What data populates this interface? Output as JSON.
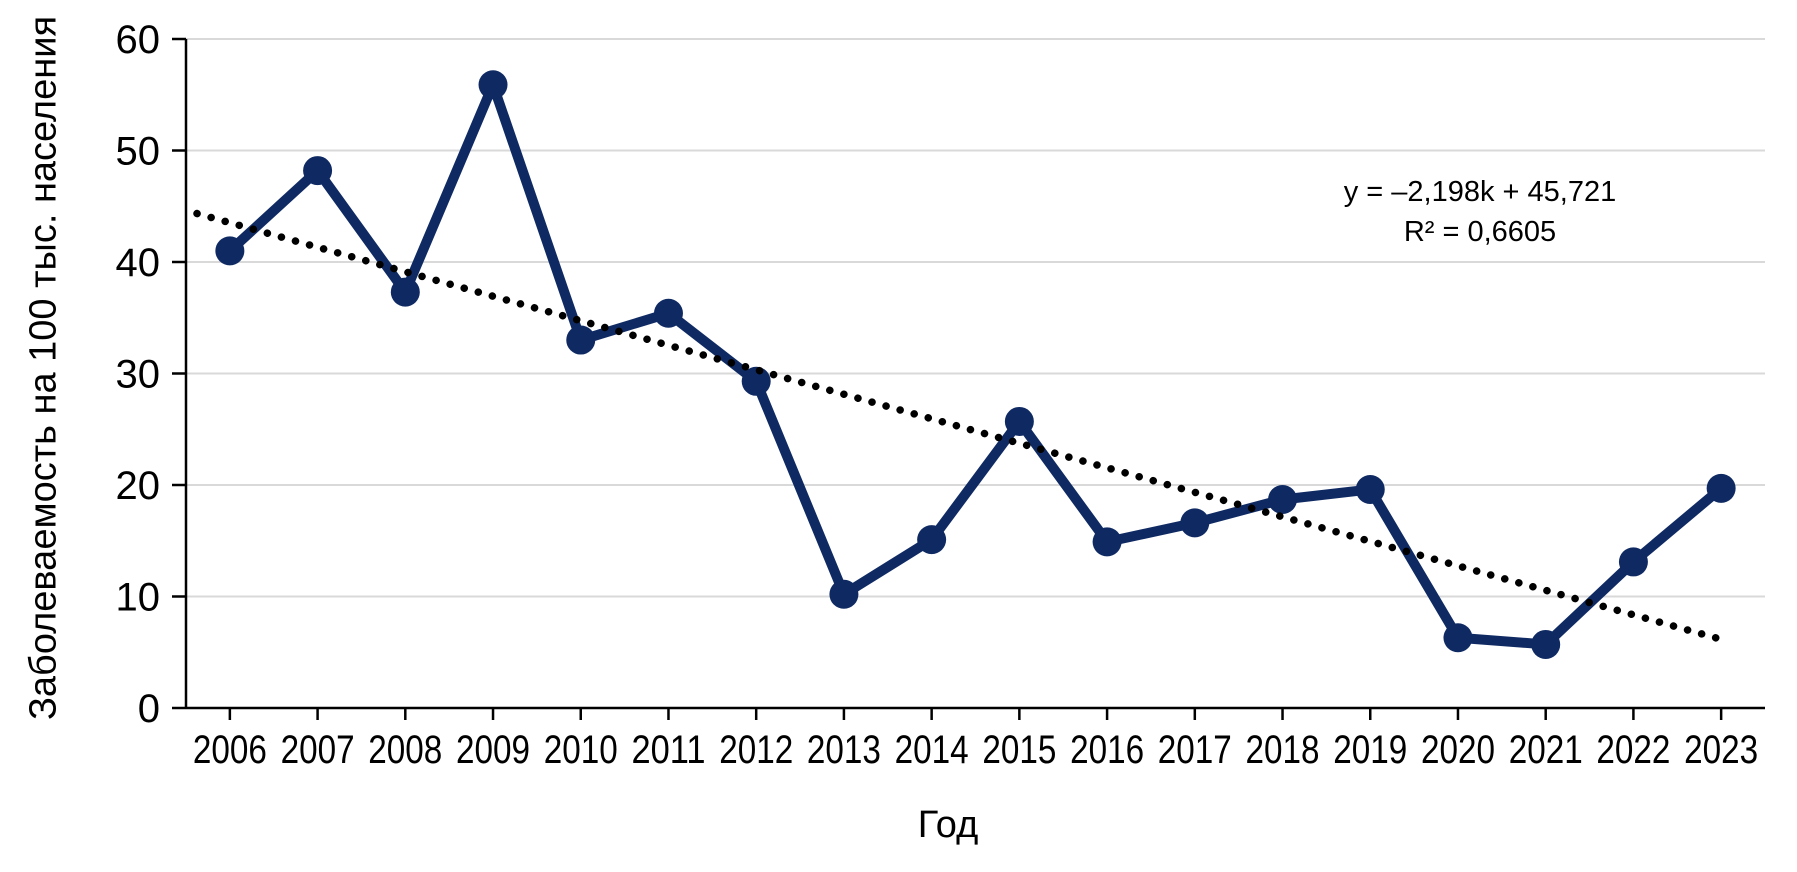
{
  "chart_data": {
    "type": "line",
    "title": "",
    "xlabel": "Год",
    "ylabel": "Заболеваемость на 100 тыс. населения",
    "categories": [
      "2006",
      "2007",
      "2008",
      "2009",
      "2010",
      "2011",
      "2012",
      "2013",
      "2014",
      "2015",
      "2016",
      "2017",
      "2018",
      "2019",
      "2020",
      "2021",
      "2022",
      "2023"
    ],
    "series": [
      {
        "name": "Заболеваемость на 100 тыс. населения",
        "values": [
          41.0,
          48.2,
          37.3,
          55.9,
          33.0,
          35.4,
          29.3,
          10.2,
          15.1,
          25.7,
          14.9,
          16.6,
          18.7,
          19.6,
          6.3,
          5.7,
          13.1,
          19.7
        ]
      }
    ],
    "ylim": [
      0,
      60
    ],
    "ytick_step": 10,
    "yticks": [
      "0",
      "10",
      "20",
      "30",
      "40",
      "50",
      "60"
    ],
    "grid": "horizontal-only",
    "legend": "none",
    "marker": "circle",
    "trendline": {
      "type": "linear",
      "slope": -2.198,
      "intercept": 45.721,
      "r_squared": 0.6605,
      "style": "dotted",
      "equation_label": "y = –2,198k + 45,721",
      "r2_label": "R² = 0,6605"
    },
    "colors": {
      "series": "#0f2a63",
      "trendline": "#000000",
      "gridline": "#d9d9d9",
      "axis": "#000000",
      "text": "#000000",
      "background": "#ffffff"
    }
  }
}
